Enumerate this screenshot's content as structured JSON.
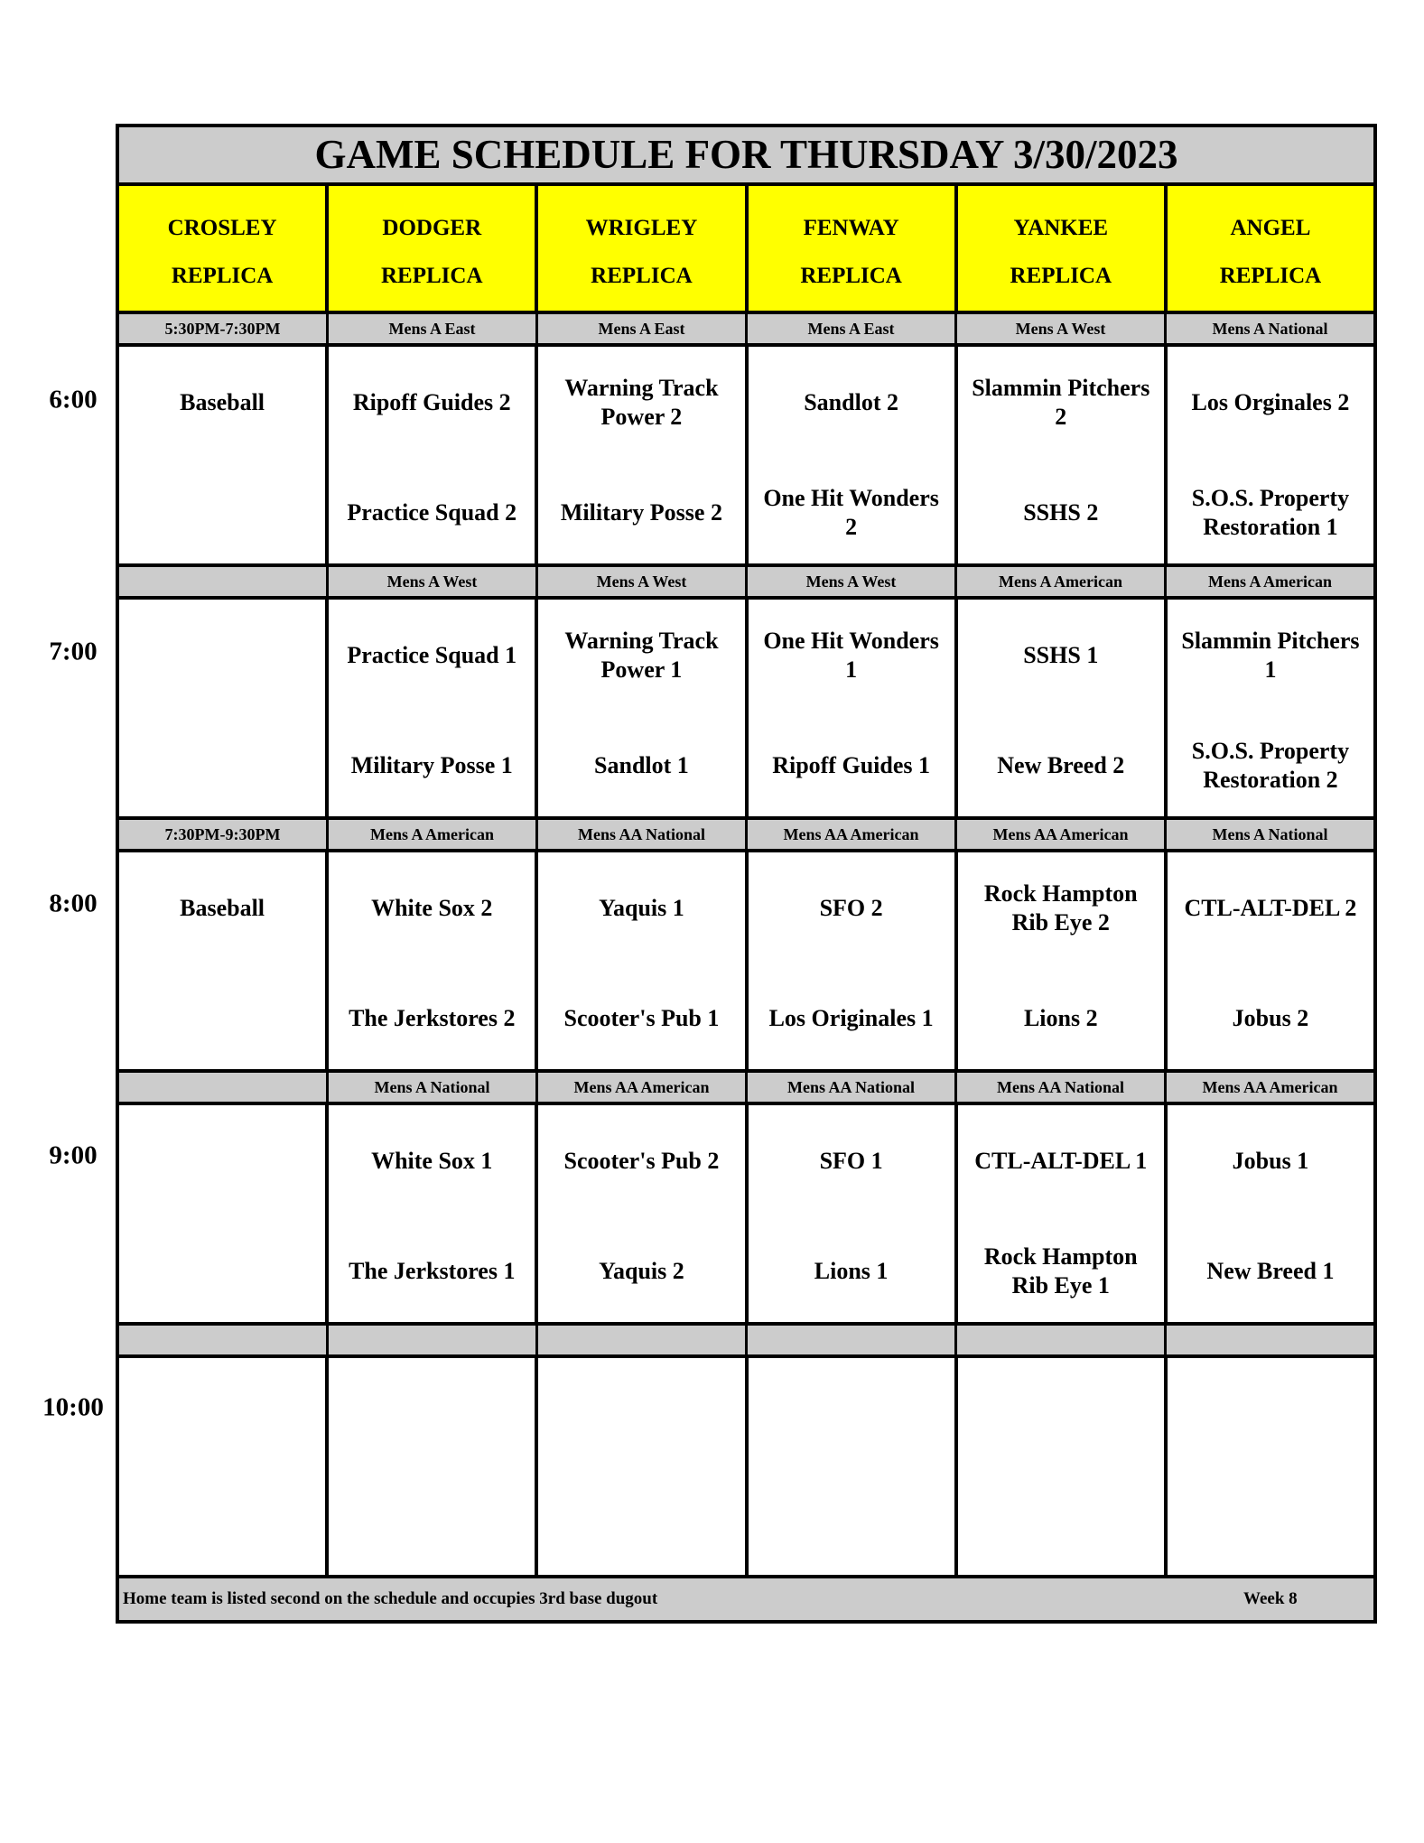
{
  "title": "GAME SCHEDULE FOR THURSDAY 3/30/2023",
  "fields": [
    {
      "line1": "CROSLEY",
      "line2": "REPLICA"
    },
    {
      "line1": "DODGER",
      "line2": "REPLICA"
    },
    {
      "line1": "WRIGLEY",
      "line2": "REPLICA"
    },
    {
      "line1": "FENWAY",
      "line2": "REPLICA"
    },
    {
      "line1": "YANKEE",
      "line2": "REPLICA"
    },
    {
      "line1": "ANGEL",
      "line2": "REPLICA"
    }
  ],
  "times": [
    "6:00",
    "7:00",
    "8:00",
    "9:00",
    "10:00"
  ],
  "blocks": [
    {
      "divisions": [
        "5:30PM-7:30PM",
        "Mens A East",
        "Mens A East",
        "Mens A East",
        "Mens A West",
        "Mens A National"
      ],
      "games": [
        [
          "Baseball",
          ""
        ],
        [
          "Ripoff Guides 2",
          "Practice Squad 2"
        ],
        [
          "Warning Track\nPower 2",
          "Military Posse 2"
        ],
        [
          "Sandlot 2",
          "One Hit Wonders\n2"
        ],
        [
          "Slammin Pitchers\n2",
          "SSHS 2"
        ],
        [
          "Los Orginales 2",
          "S.O.S. Property\nRestoration 1"
        ]
      ]
    },
    {
      "divisions": [
        "",
        "Mens A West",
        "Mens A West",
        "Mens A West",
        "Mens A American",
        "Mens A American"
      ],
      "games": [
        [
          "",
          ""
        ],
        [
          "Practice Squad 1",
          "Military Posse 1"
        ],
        [
          "Warning Track\nPower 1",
          "Sandlot 1"
        ],
        [
          "One Hit Wonders\n1",
          "Ripoff Guides 1"
        ],
        [
          "SSHS 1",
          "New Breed 2"
        ],
        [
          "Slammin Pitchers\n1",
          "S.O.S. Property\nRestoration 2"
        ]
      ]
    },
    {
      "divisions": [
        "7:30PM-9:30PM",
        "Mens A American",
        "Mens AA National",
        "Mens AA American",
        "Mens AA American",
        "Mens A National"
      ],
      "games": [
        [
          "Baseball",
          ""
        ],
        [
          "White Sox 2",
          "The Jerkstores 2"
        ],
        [
          "Yaquis 1",
          "Scooter's Pub 1"
        ],
        [
          "SFO 2",
          "Los Originales 1"
        ],
        [
          "Rock Hampton\nRib Eye 2",
          "Lions 2"
        ],
        [
          "CTL-ALT-DEL 2",
          "Jobus 2"
        ]
      ]
    },
    {
      "divisions": [
        "",
        "Mens A National",
        "Mens AA American",
        "Mens AA National",
        "Mens AA National",
        "Mens AA American"
      ],
      "games": [
        [
          "",
          ""
        ],
        [
          "White Sox 1",
          "The Jerkstores 1"
        ],
        [
          "Scooter's Pub 2",
          "Yaquis 2"
        ],
        [
          "SFO 1",
          "Lions 1"
        ],
        [
          "CTL-ALT-DEL 1",
          "Rock Hampton\nRib Eye 1"
        ],
        [
          "Jobus 1",
          "New Breed 1"
        ]
      ]
    },
    {
      "divisions": [
        "",
        "",
        "",
        "",
        "",
        ""
      ],
      "games": [
        [
          "",
          ""
        ],
        [
          "",
          ""
        ],
        [
          "",
          ""
        ],
        [
          "",
          ""
        ],
        [
          "",
          ""
        ],
        [
          "",
          ""
        ]
      ]
    }
  ],
  "footer": {
    "note": "Home team is listed second on the schedule and occupies 3rd base dugout",
    "week": "Week 8"
  },
  "colors": {
    "header_fill": "#ffff00",
    "band_fill": "#cccccc",
    "border": "#000000"
  }
}
